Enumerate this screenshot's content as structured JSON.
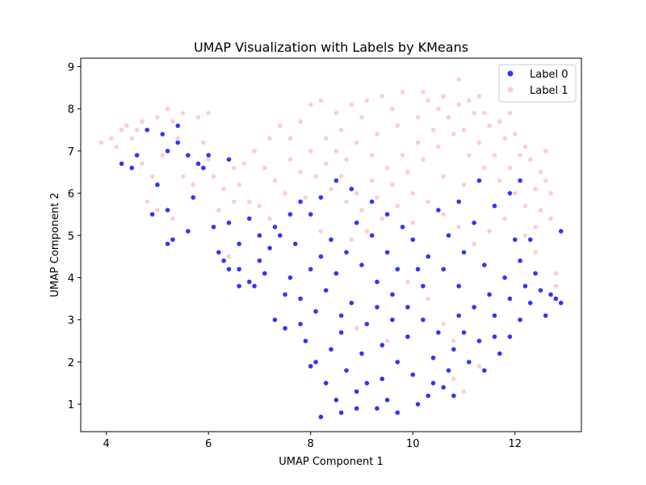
{
  "chart_data": {
    "type": "scatter",
    "title": "UMAP Visualization with Labels by KMeans",
    "xlabel": "UMAP Component 1",
    "ylabel": "UMAP Component 2",
    "xlim": [
      3.5,
      13.3
    ],
    "ylim": [
      0.35,
      9.2
    ],
    "xticks": [
      4,
      6,
      8,
      10,
      12
    ],
    "yticks": [
      1,
      2,
      3,
      4,
      5,
      6,
      7,
      8,
      9
    ],
    "grid": false,
    "legend_position": "top-right",
    "series": [
      {
        "name": "Label 0",
        "color": "#0000ff",
        "points": [
          [
            4.3,
            6.7
          ],
          [
            4.5,
            6.6
          ],
          [
            4.6,
            6.9
          ],
          [
            5.1,
            7.4
          ],
          [
            5.4,
            7.2
          ],
          [
            5.6,
            6.9
          ],
          [
            5.9,
            6.6
          ],
          [
            5.2,
            7.0
          ],
          [
            5.0,
            6.2
          ],
          [
            5.2,
            5.6
          ],
          [
            5.7,
            5.9
          ],
          [
            4.9,
            5.5
          ],
          [
            5.3,
            4.9
          ],
          [
            5.2,
            4.8
          ],
          [
            5.6,
            5.1
          ],
          [
            6.1,
            5.2
          ],
          [
            6.4,
            5.3
          ],
          [
            6.6,
            4.8
          ],
          [
            6.3,
            4.4
          ],
          [
            6.6,
            4.2
          ],
          [
            6.8,
            3.9
          ],
          [
            6.6,
            3.8
          ],
          [
            7.0,
            4.4
          ],
          [
            7.2,
            4.7
          ],
          [
            7.3,
            5.2
          ],
          [
            7.6,
            5.5
          ],
          [
            7.8,
            5.8
          ],
          [
            7.4,
            5.0
          ],
          [
            6.4,
            6.8
          ],
          [
            6.8,
            5.4
          ],
          [
            7.6,
            4.0
          ],
          [
            7.8,
            3.5
          ],
          [
            7.3,
            3.0
          ],
          [
            7.5,
            2.8
          ],
          [
            7.9,
            2.5
          ],
          [
            8.1,
            2.0
          ],
          [
            8.3,
            1.5
          ],
          [
            8.5,
            1.1
          ],
          [
            8.2,
            0.7
          ],
          [
            8.6,
            0.8
          ],
          [
            8.9,
            0.9
          ],
          [
            9.3,
            0.9
          ],
          [
            9.7,
            0.8
          ],
          [
            10.1,
            1.0
          ],
          [
            10.3,
            1.2
          ],
          [
            10.6,
            1.4
          ],
          [
            10.8,
            1.2
          ],
          [
            8.1,
            3.2
          ],
          [
            8.3,
            3.7
          ],
          [
            8.5,
            4.1
          ],
          [
            8.7,
            4.6
          ],
          [
            8.4,
            4.9
          ],
          [
            8.9,
            5.3
          ],
          [
            9.2,
            5.0
          ],
          [
            9.5,
            4.6
          ],
          [
            9.0,
            4.3
          ],
          [
            9.3,
            3.9
          ],
          [
            9.6,
            3.6
          ],
          [
            9.9,
            3.3
          ],
          [
            10.2,
            3.0
          ],
          [
            10.5,
            2.7
          ],
          [
            10.8,
            2.3
          ],
          [
            11.1,
            2.0
          ],
          [
            11.4,
            1.8
          ],
          [
            11.7,
            2.2
          ],
          [
            11.9,
            2.6
          ],
          [
            12.1,
            3.0
          ],
          [
            12.3,
            3.4
          ],
          [
            12.5,
            3.7
          ],
          [
            12.8,
            3.5
          ],
          [
            12.9,
            3.4
          ],
          [
            12.7,
            3.6
          ],
          [
            12.4,
            4.1
          ],
          [
            12.1,
            4.4
          ],
          [
            11.8,
            4.0
          ],
          [
            11.5,
            3.6
          ],
          [
            11.2,
            3.3
          ],
          [
            10.9,
            3.8
          ],
          [
            10.6,
            4.2
          ],
          [
            10.3,
            4.5
          ],
          [
            10.0,
            4.9
          ],
          [
            9.8,
            5.2
          ],
          [
            9.5,
            5.5
          ],
          [
            9.2,
            5.8
          ],
          [
            8.8,
            6.1
          ],
          [
            8.5,
            6.3
          ],
          [
            8.2,
            5.9
          ],
          [
            8.0,
            5.5
          ],
          [
            7.7,
            4.8
          ],
          [
            8.0,
            4.2
          ],
          [
            8.8,
            3.4
          ],
          [
            9.1,
            2.9
          ],
          [
            9.4,
            2.4
          ],
          [
            9.7,
            2.0
          ],
          [
            10.0,
            1.7
          ],
          [
            9.1,
            1.5
          ],
          [
            8.7,
            1.8
          ],
          [
            8.4,
            2.3
          ],
          [
            8.6,
            2.7
          ],
          [
            9.0,
            2.2
          ],
          [
            9.4,
            1.6
          ],
          [
            9.9,
            2.6
          ],
          [
            10.4,
            2.1
          ],
          [
            10.7,
            1.8
          ],
          [
            11.0,
            2.7
          ],
          [
            11.3,
            2.5
          ],
          [
            11.6,
            3.1
          ],
          [
            11.9,
            3.5
          ],
          [
            12.2,
            3.8
          ],
          [
            11.4,
            4.3
          ],
          [
            11.0,
            4.6
          ],
          [
            10.7,
            5.0
          ],
          [
            11.2,
            5.3
          ],
          [
            11.6,
            5.7
          ],
          [
            11.9,
            6.0
          ],
          [
            12.1,
            6.3
          ],
          [
            11.3,
            6.3
          ],
          [
            10.9,
            5.8
          ],
          [
            10.5,
            5.6
          ],
          [
            12.0,
            4.9
          ],
          [
            12.3,
            4.9
          ],
          [
            12.9,
            5.1
          ],
          [
            10.2,
            3.8
          ],
          [
            9.7,
            4.2
          ],
          [
            8.2,
            4.5
          ],
          [
            7.5,
            3.6
          ],
          [
            7.8,
            2.9
          ],
          [
            8.0,
            1.9
          ],
          [
            8.9,
            1.3
          ],
          [
            9.5,
            1.1
          ],
          [
            10.4,
            1.5
          ],
          [
            9.3,
            3.3
          ],
          [
            8.6,
            3.1
          ],
          [
            10.1,
            4.2
          ],
          [
            9.6,
            3.0
          ],
          [
            10.9,
            3.1
          ],
          [
            11.6,
            2.6
          ],
          [
            12.6,
            3.1
          ],
          [
            7.1,
            4.1
          ],
          [
            6.9,
            3.8
          ],
          [
            7.0,
            5.0
          ],
          [
            6.2,
            4.6
          ],
          [
            6.4,
            4.2
          ],
          [
            5.4,
            7.6
          ],
          [
            4.8,
            7.5
          ],
          [
            5.8,
            6.7
          ],
          [
            6.0,
            6.9
          ]
        ]
      },
      {
        "name": "Label 1",
        "color": "#ffc0cb",
        "points": [
          [
            3.9,
            7.2
          ],
          [
            4.1,
            7.3
          ],
          [
            4.3,
            7.5
          ],
          [
            4.4,
            7.6
          ],
          [
            4.7,
            7.7
          ],
          [
            5.0,
            7.8
          ],
          [
            5.2,
            8.0
          ],
          [
            5.5,
            7.9
          ],
          [
            5.8,
            7.8
          ],
          [
            6.0,
            7.9
          ],
          [
            5.3,
            7.7
          ],
          [
            4.6,
            7.5
          ],
          [
            4.5,
            7.3
          ],
          [
            4.8,
            5.8
          ],
          [
            5.0,
            5.6
          ],
          [
            5.3,
            5.4
          ],
          [
            5.5,
            6.4
          ],
          [
            6.3,
            6.1
          ],
          [
            6.6,
            6.2
          ],
          [
            6.5,
            5.8
          ],
          [
            6.7,
            6.7
          ],
          [
            6.9,
            7.0
          ],
          [
            7.2,
            7.3
          ],
          [
            7.3,
            6.3
          ],
          [
            7.5,
            6.0
          ],
          [
            7.2,
            5.4
          ],
          [
            6.8,
            5.8
          ],
          [
            6.2,
            5.6
          ],
          [
            6.0,
            6.8
          ],
          [
            6.4,
            4.5
          ],
          [
            7.4,
            7.6
          ],
          [
            7.6,
            7.3
          ],
          [
            7.8,
            7.7
          ],
          [
            8.0,
            8.1
          ],
          [
            8.2,
            8.2
          ],
          [
            8.5,
            7.9
          ],
          [
            8.8,
            8.1
          ],
          [
            9.1,
            8.2
          ],
          [
            9.4,
            8.3
          ],
          [
            9.8,
            8.4
          ],
          [
            10.2,
            8.4
          ],
          [
            10.6,
            8.3
          ],
          [
            10.9,
            8.7
          ],
          [
            11.1,
            8.2
          ],
          [
            11.4,
            7.9
          ],
          [
            11.7,
            7.7
          ],
          [
            12.0,
            7.4
          ],
          [
            12.2,
            7.1
          ],
          [
            12.3,
            6.8
          ],
          [
            12.5,
            6.5
          ],
          [
            12.6,
            6.3
          ],
          [
            12.7,
            6.0
          ],
          [
            12.7,
            5.4
          ],
          [
            12.5,
            5.6
          ],
          [
            12.4,
            5.2
          ],
          [
            12.2,
            5.0
          ],
          [
            12.8,
            4.1
          ],
          [
            12.4,
            4.6
          ],
          [
            8.0,
            7.0
          ],
          [
            8.3,
            6.7
          ],
          [
            8.6,
            6.4
          ],
          [
            8.9,
            6.0
          ],
          [
            9.2,
            6.3
          ],
          [
            9.5,
            6.6
          ],
          [
            9.8,
            6.9
          ],
          [
            10.1,
            7.2
          ],
          [
            10.4,
            7.5
          ],
          [
            10.7,
            7.8
          ],
          [
            11.0,
            7.5
          ],
          [
            11.3,
            7.2
          ],
          [
            11.6,
            6.9
          ],
          [
            11.9,
            6.6
          ],
          [
            12.1,
            6.9
          ],
          [
            11.8,
            7.3
          ],
          [
            11.5,
            7.6
          ],
          [
            11.2,
            7.9
          ],
          [
            10.9,
            8.1
          ],
          [
            10.5,
            8.0
          ],
          [
            10.1,
            7.8
          ],
          [
            9.7,
            7.6
          ],
          [
            9.3,
            7.4
          ],
          [
            8.9,
            7.2
          ],
          [
            8.6,
            7.5
          ],
          [
            8.3,
            7.3
          ],
          [
            8.1,
            6.4
          ],
          [
            8.4,
            6.1
          ],
          [
            8.7,
            5.8
          ],
          [
            9.0,
            5.6
          ],
          [
            9.3,
            5.9
          ],
          [
            9.6,
            6.2
          ],
          [
            9.9,
            6.5
          ],
          [
            10.2,
            6.8
          ],
          [
            10.5,
            7.1
          ],
          [
            10.8,
            7.4
          ],
          [
            11.1,
            6.9
          ],
          [
            11.4,
            6.6
          ],
          [
            11.7,
            6.3
          ],
          [
            12.0,
            6.0
          ],
          [
            12.2,
            5.7
          ],
          [
            11.8,
            5.4
          ],
          [
            11.5,
            5.1
          ],
          [
            11.2,
            4.8
          ],
          [
            10.9,
            5.2
          ],
          [
            10.6,
            5.5
          ],
          [
            10.3,
            5.8
          ],
          [
            10.0,
            6.0
          ],
          [
            9.7,
            5.7
          ],
          [
            9.4,
            5.4
          ],
          [
            9.1,
            5.1
          ],
          [
            8.8,
            4.9
          ],
          [
            9.9,
            3.9
          ],
          [
            10.3,
            3.5
          ],
          [
            10.8,
            2.5
          ],
          [
            11.0,
            1.3
          ],
          [
            10.8,
            1.6
          ],
          [
            11.3,
            1.9
          ],
          [
            10.6,
            2.9
          ],
          [
            8.9,
            2.8
          ],
          [
            9.5,
            2.5
          ],
          [
            12.8,
            3.8
          ],
          [
            8.2,
            5.1
          ],
          [
            7.8,
            6.5
          ],
          [
            7.6,
            6.8
          ],
          [
            8.5,
            7.0
          ],
          [
            9.0,
            7.8
          ],
          [
            9.6,
            8.0
          ],
          [
            10.3,
            8.2
          ],
          [
            11.3,
            8.3
          ],
          [
            11.9,
            7.9
          ],
          [
            12.6,
            7.0
          ],
          [
            12.4,
            6.1
          ],
          [
            11.0,
            6.2
          ],
          [
            10.6,
            6.4
          ],
          [
            10.0,
            5.3
          ],
          [
            9.2,
            6.9
          ],
          [
            8.7,
            6.8
          ],
          [
            7.9,
            5.9
          ],
          [
            7.1,
            6.6
          ],
          [
            7.0,
            5.7
          ],
          [
            6.5,
            6.6
          ],
          [
            5.9,
            7.2
          ],
          [
            5.1,
            6.9
          ],
          [
            4.7,
            6.7
          ],
          [
            4.9,
            6.4
          ],
          [
            5.4,
            7.3
          ],
          [
            4.2,
            7.1
          ],
          [
            5.7,
            6.2
          ],
          [
            6.1,
            6.4
          ]
        ]
      }
    ]
  }
}
